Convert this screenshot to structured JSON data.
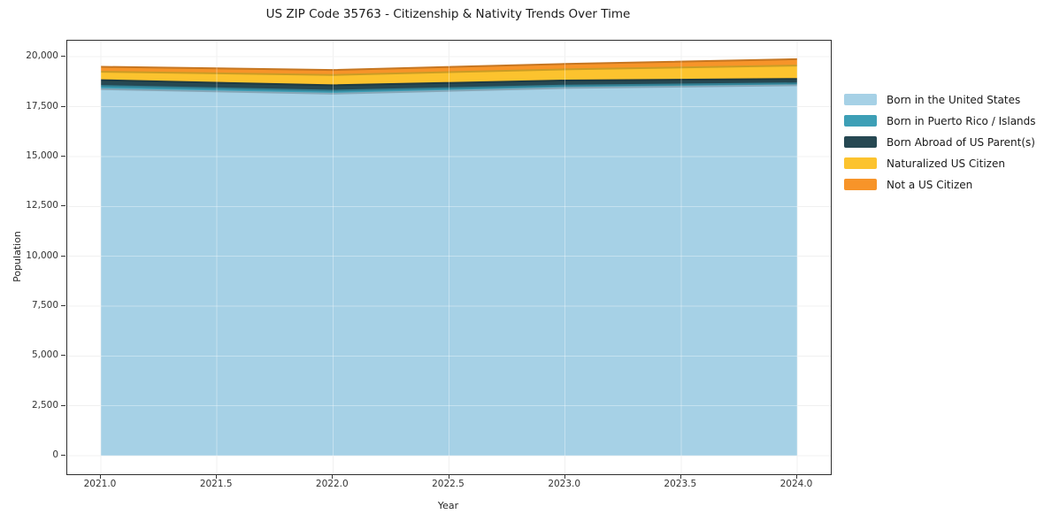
{
  "chart_data": {
    "type": "area",
    "stacked": true,
    "title": "US ZIP Code 35763 - Citizenship & Nativity Trends Over Time",
    "xlabel": "Year",
    "ylabel": "Population",
    "x": [
      2021,
      2022,
      2023,
      2024
    ],
    "series": [
      {
        "name": "Born in the United States",
        "color": "#a6d1e6",
        "values": [
          18380,
          18150,
          18440,
          18570
        ]
      },
      {
        "name": "Born in Puerto Rico / Islands",
        "color": "#3d9fb6",
        "values": [
          160,
          150,
          120,
          100
        ]
      },
      {
        "name": "Born Abroad of US Parent(s)",
        "color": "#264852",
        "values": [
          290,
          270,
          250,
          220
        ]
      },
      {
        "name": "Naturalized US Citizen",
        "color": "#fcc32e",
        "values": [
          420,
          520,
          560,
          670
        ]
      },
      {
        "name": "Not a US Citizen",
        "color": "#f79429",
        "values": [
          250,
          250,
          270,
          320
        ]
      }
    ],
    "x_ticks": [
      {
        "v": 2021.0,
        "label": "2021.0"
      },
      {
        "v": 2021.5,
        "label": "2021.5"
      },
      {
        "v": 2022.0,
        "label": "2022.0"
      },
      {
        "v": 2022.5,
        "label": "2022.5"
      },
      {
        "v": 2023.0,
        "label": "2023.0"
      },
      {
        "v": 2023.5,
        "label": "2023.5"
      },
      {
        "v": 2024.0,
        "label": "2024.0"
      }
    ],
    "y_ticks": [
      {
        "v": 0,
        "label": "0"
      },
      {
        "v": 2500,
        "label": "2,500"
      },
      {
        "v": 5000,
        "label": "5,000"
      },
      {
        "v": 7500,
        "label": "7,500"
      },
      {
        "v": 10000,
        "label": "10,000"
      },
      {
        "v": 12500,
        "label": "12,500"
      },
      {
        "v": 15000,
        "label": "15,000"
      },
      {
        "v": 17500,
        "label": "17,500"
      },
      {
        "v": 20000,
        "label": "20,000"
      }
    ],
    "xlim": [
      2021,
      2024
    ],
    "ylim": [
      0,
      20000
    ],
    "grid": true,
    "legend_position": "right",
    "grid_color": "#e8e8e8",
    "frame_color": "#2f2f2f"
  }
}
